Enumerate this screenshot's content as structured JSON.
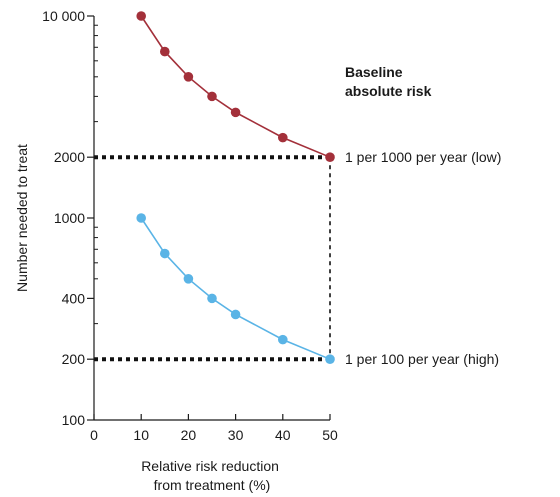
{
  "chart_data": {
    "type": "line",
    "xlabel_lines": [
      "Relative risk reduction",
      "from treatment (%)"
    ],
    "ylabel": "Number needed to treat",
    "x_scale": "linear",
    "y_scale": "log",
    "xlim": [
      0,
      50
    ],
    "ylim": [
      100,
      10000
    ],
    "x_ticks": [
      0,
      10,
      20,
      30,
      40,
      50
    ],
    "x_tick_labels": [
      "0",
      "10",
      "20",
      "30",
      "40",
      "50"
    ],
    "y_ticks": [
      100,
      200,
      400,
      1000,
      2000,
      10000
    ],
    "y_tick_labels": [
      "100",
      "200",
      "400",
      "1000",
      "2000",
      "10 000"
    ],
    "y_minor_ticks": [
      300,
      500,
      600,
      700,
      800,
      900,
      3000,
      4000,
      5000,
      6000,
      7000,
      8000,
      9000
    ],
    "grid": false,
    "legend_title_lines": [
      "Baseline",
      "absolute risk"
    ],
    "series": [
      {
        "name": "1 per 1000 per year (low)",
        "color": "#a3303a",
        "x": [
          10,
          15,
          20,
          25,
          30,
          40,
          50
        ],
        "y": [
          10000,
          6667,
          5000,
          4000,
          3333,
          2500,
          2000
        ]
      },
      {
        "name": "1 per 100 per year (high)",
        "color": "#5ab4e6",
        "x": [
          10,
          15,
          20,
          25,
          30,
          40,
          50
        ],
        "y": [
          1000,
          667,
          500,
          400,
          333,
          250,
          200
        ]
      }
    ],
    "reference_lines": [
      {
        "y": 2000,
        "x_end": 50,
        "style": "dotted-thick"
      },
      {
        "y": 200,
        "x_end": 50,
        "style": "dotted-thick"
      },
      {
        "x": 50,
        "y_from": 200,
        "y_to": 2000,
        "style": "dashed"
      }
    ]
  }
}
